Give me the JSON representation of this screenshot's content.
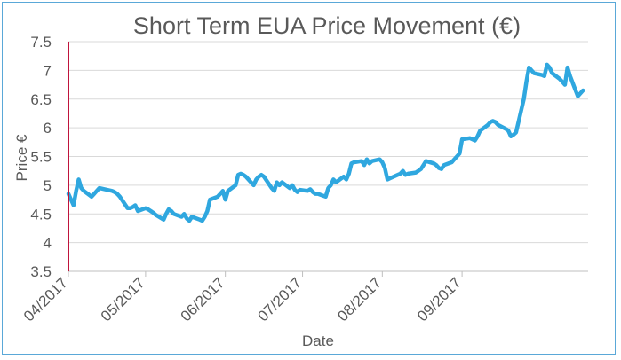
{
  "chart_data": {
    "type": "line",
    "title": "Short Term EUA Price Movement (€)",
    "xlabel": "Date",
    "ylabel": "Price €",
    "ylim": [
      3.5,
      7.5
    ],
    "yticks": [
      3.5,
      4,
      4.5,
      5,
      5.5,
      6,
      6.5,
      7,
      7.5
    ],
    "ytick_labels": [
      "3.5",
      "4",
      "4.5",
      "5",
      "5.5",
      "6",
      "6.5",
      "7",
      "7.5"
    ],
    "xlim": [
      "2017-04-01",
      "2017-10-20"
    ],
    "xticks": [
      "2017-04-01",
      "2017-05-01",
      "2017-06-01",
      "2017-07-01",
      "2017-08-01",
      "2017-09-01"
    ],
    "xtick_labels": [
      "04/2017",
      "05/2017",
      "06/2017",
      "07/2017",
      "08/2017",
      "09/2017"
    ],
    "grid": "horizontal",
    "line_color": "#2fa7df",
    "y_axis_color": "#c0143c",
    "series": [
      {
        "x": [
          "2017-04-01",
          "2017-04-03",
          "2017-04-04",
          "2017-04-05",
          "2017-04-06",
          "2017-04-07",
          "2017-04-10",
          "2017-04-11",
          "2017-04-12",
          "2017-04-13",
          "2017-04-18",
          "2017-04-19",
          "2017-04-20",
          "2017-04-21",
          "2017-04-24",
          "2017-04-25",
          "2017-04-26",
          "2017-04-27",
          "2017-04-28",
          "2017-05-01",
          "2017-05-02",
          "2017-05-03",
          "2017-05-04",
          "2017-05-05",
          "2017-05-08",
          "2017-05-09",
          "2017-05-10",
          "2017-05-11",
          "2017-05-12",
          "2017-05-15",
          "2017-05-16",
          "2017-05-17",
          "2017-05-18",
          "2017-05-19",
          "2017-05-22",
          "2017-05-23",
          "2017-05-24",
          "2017-05-25",
          "2017-05-26",
          "2017-05-29",
          "2017-05-30",
          "2017-05-31",
          "2017-06-01",
          "2017-06-02",
          "2017-06-05",
          "2017-06-06",
          "2017-06-07",
          "2017-06-08",
          "2017-06-09",
          "2017-06-12",
          "2017-06-13",
          "2017-06-14",
          "2017-06-15",
          "2017-06-16",
          "2017-06-19",
          "2017-06-20",
          "2017-06-21",
          "2017-06-22",
          "2017-06-23",
          "2017-06-26",
          "2017-06-27",
          "2017-06-28",
          "2017-06-29",
          "2017-06-30",
          "2017-07-03",
          "2017-07-04",
          "2017-07-05",
          "2017-07-06",
          "2017-07-07",
          "2017-07-10",
          "2017-07-11",
          "2017-07-12",
          "2017-07-13",
          "2017-07-14",
          "2017-07-17",
          "2017-07-18",
          "2017-07-19",
          "2017-07-20",
          "2017-07-21",
          "2017-07-24",
          "2017-07-25",
          "2017-07-26",
          "2017-07-27",
          "2017-07-28",
          "2017-07-31",
          "2017-08-01",
          "2017-08-02",
          "2017-08-03",
          "2017-08-04",
          "2017-08-07",
          "2017-08-08",
          "2017-08-09",
          "2017-08-10",
          "2017-08-11",
          "2017-08-14",
          "2017-08-15",
          "2017-08-16",
          "2017-08-17",
          "2017-08-18",
          "2017-08-21",
          "2017-08-22",
          "2017-08-23",
          "2017-08-24",
          "2017-08-25",
          "2017-08-28",
          "2017-08-29",
          "2017-08-30",
          "2017-08-31",
          "2017-09-01",
          "2017-09-04",
          "2017-09-05",
          "2017-09-06",
          "2017-09-07",
          "2017-09-08",
          "2017-09-11",
          "2017-09-12",
          "2017-09-13",
          "2017-09-14",
          "2017-09-15",
          "2017-09-18",
          "2017-09-19",
          "2017-09-20",
          "2017-09-21",
          "2017-09-22",
          "2017-09-25",
          "2017-09-26",
          "2017-09-27",
          "2017-09-28",
          "2017-09-29",
          "2017-10-02",
          "2017-10-03",
          "2017-10-04",
          "2017-10-05",
          "2017-10-06",
          "2017-10-09",
          "2017-10-10",
          "2017-10-11",
          "2017-10-12",
          "2017-10-13",
          "2017-10-16",
          "2017-10-17",
          "2017-10-18"
        ],
        "y": [
          4.85,
          4.65,
          4.9,
          5.1,
          4.95,
          4.9,
          4.8,
          4.85,
          4.9,
          4.95,
          4.9,
          4.88,
          4.85,
          4.8,
          4.6,
          4.6,
          4.62,
          4.65,
          4.55,
          4.6,
          4.58,
          4.55,
          4.52,
          4.48,
          4.4,
          4.5,
          4.58,
          4.55,
          4.5,
          4.45,
          4.5,
          4.42,
          4.38,
          4.45,
          4.4,
          4.38,
          4.45,
          4.55,
          4.75,
          4.8,
          4.85,
          4.9,
          4.75,
          4.9,
          5.0,
          5.18,
          5.2,
          5.18,
          5.15,
          5.0,
          5.1,
          5.15,
          5.18,
          5.15,
          4.95,
          4.9,
          5.05,
          5.0,
          5.05,
          4.95,
          5.0,
          4.92,
          4.88,
          4.92,
          4.9,
          4.93,
          4.88,
          4.85,
          4.85,
          4.8,
          4.95,
          5.0,
          5.1,
          5.05,
          5.15,
          5.1,
          5.2,
          5.38,
          5.4,
          5.42,
          5.35,
          5.45,
          5.38,
          5.42,
          5.45,
          5.4,
          5.3,
          5.1,
          5.12,
          5.18,
          5.2,
          5.25,
          5.18,
          5.2,
          5.22,
          5.25,
          5.28,
          5.35,
          5.42,
          5.38,
          5.35,
          5.3,
          5.28,
          5.35,
          5.4,
          5.45,
          5.5,
          5.55,
          5.8,
          5.82,
          5.8,
          5.78,
          5.85,
          5.95,
          6.05,
          6.1,
          6.12,
          6.1,
          6.05,
          5.98,
          5.95,
          5.85,
          5.88,
          5.92,
          6.5,
          6.8,
          7.05,
          7.0,
          6.95,
          6.92,
          6.9,
          7.1,
          7.05,
          6.95,
          6.85,
          6.8,
          6.75,
          7.05,
          6.9,
          6.55,
          6.6,
          6.65
        ]
      }
    ]
  }
}
